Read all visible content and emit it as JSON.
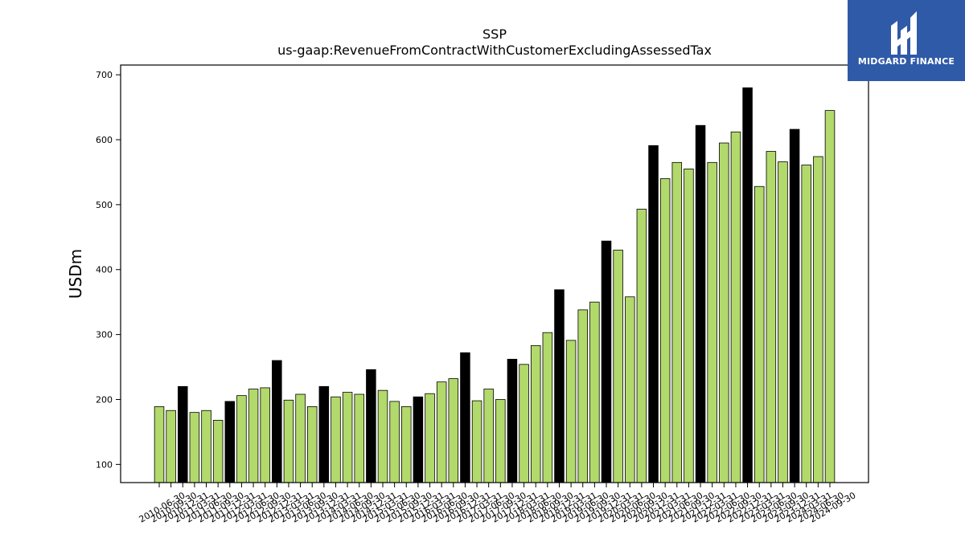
{
  "logo": {
    "text": "MIDGARD FINANCE",
    "background": "#2f5aa8"
  },
  "colors": {
    "default_bar": "#b2d96b",
    "highlight_bar": "#000000",
    "edge": "#000000"
  },
  "chart_data": {
    "type": "bar",
    "title": "SSP",
    "subtitle": "us-gaap:RevenueFromContractWithCustomerExcludingAssessedTax",
    "ylabel": "USDm",
    "xlabel": "",
    "ylim": [
      72,
      715
    ],
    "yticks": [
      100,
      200,
      300,
      400,
      500,
      600,
      700
    ],
    "grid": false,
    "categories": [
      "2010-06-30",
      "2010-09-30",
      "2010-12-31",
      "2011-03-31",
      "2011-06-30",
      "2011-09-30",
      "2011-12-31",
      "2012-03-31",
      "2012-06-30",
      "2012-09-30",
      "2012-12-31",
      "2013-03-31",
      "2013-06-30",
      "2013-09-30",
      "2013-12-31",
      "2014-03-31",
      "2014-06-30",
      "2014-09-30",
      "2014-12-31",
      "2015-03-31",
      "2015-06-30",
      "2015-09-30",
      "2015-12-31",
      "2016-03-31",
      "2016-06-30",
      "2016-09-30",
      "2016-12-31",
      "2017-03-31",
      "2017-06-30",
      "2017-09-30",
      "2017-12-31",
      "2018-03-31",
      "2018-06-30",
      "2018-09-30",
      "2018-12-31",
      "2019-03-31",
      "2019-06-30",
      "2019-09-30",
      "2019-12-31",
      "2020-03-31",
      "2020-06-30",
      "2020-09-30",
      "2020-12-31",
      "2021-03-31",
      "2021-06-30",
      "2021-09-30",
      "2021-12-31",
      "2022-03-31",
      "2022-06-30",
      "2022-09-30",
      "2022-12-31",
      "2023-03-31",
      "2023-06-30",
      "2023-09-30",
      "2023-12-31",
      "2024-03-31",
      "2024-06-30",
      "2024-09-30"
    ],
    "values": [
      189,
      183,
      220,
      180,
      183,
      168,
      197,
      206,
      216,
      218,
      260,
      199,
      208,
      189,
      220,
      204,
      211,
      208,
      246,
      214,
      197,
      189,
      204,
      209,
      227,
      232,
      272,
      198,
      216,
      200,
      262,
      254,
      283,
      303,
      369,
      291,
      338,
      350,
      444,
      430,
      358,
      493,
      591,
      540,
      565,
      555,
      622,
      565,
      595,
      612,
      680,
      528,
      582,
      566,
      616,
      561,
      574,
      645
    ],
    "highlight": [
      false,
      false,
      true,
      false,
      false,
      false,
      true,
      false,
      false,
      false,
      true,
      false,
      false,
      false,
      true,
      false,
      false,
      false,
      true,
      false,
      false,
      false,
      true,
      false,
      false,
      false,
      true,
      false,
      false,
      false,
      true,
      false,
      false,
      false,
      true,
      false,
      false,
      false,
      true,
      false,
      false,
      false,
      true,
      false,
      false,
      false,
      true,
      false,
      false,
      false,
      true,
      false,
      false,
      false,
      true,
      false,
      false,
      false
    ]
  }
}
